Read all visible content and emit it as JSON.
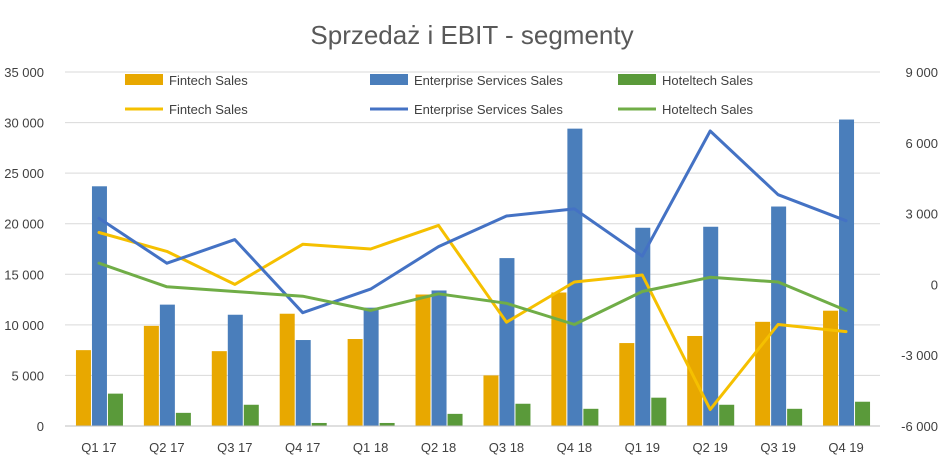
{
  "chart_data": {
    "type": "bar",
    "title": "Sprzedaż i EBIT - segmenty",
    "categories": [
      "Q1 17",
      "Q2 17",
      "Q3 17",
      "Q4 17",
      "Q1 18",
      "Q2 18",
      "Q3 18",
      "Q4 18",
      "Q1 19",
      "Q2 19",
      "Q3 19",
      "Q4 19"
    ],
    "left_axis": {
      "min": 0,
      "max": 35000,
      "step": 5000,
      "tick_labels": [
        "0",
        "5 000",
        "10 000",
        "15 000",
        "20 000",
        "25 000",
        "30 000",
        "35 000"
      ]
    },
    "right_axis": {
      "min": -6000,
      "max": 9000,
      "step": 3000,
      "tick_labels": [
        "-6 000",
        "-3 000",
        "0",
        "3 000",
        "6 000",
        "9 000"
      ]
    },
    "bar_series": [
      {
        "name": "Fintech Sales",
        "color": "#E8A800",
        "values": [
          7500,
          9900,
          7400,
          11100,
          8600,
          13000,
          5000,
          13200,
          8200,
          8900,
          10300,
          11400
        ]
      },
      {
        "name": "Enterprise Services Sales",
        "color": "#4A7EBB",
        "values": [
          23700,
          12000,
          11000,
          8500,
          11700,
          13400,
          16600,
          29400,
          19600,
          19700,
          21700,
          30300
        ]
      },
      {
        "name": "Hoteltech Sales",
        "color": "#5A9A3A",
        "values": [
          3200,
          1300,
          2100,
          300,
          300,
          1200,
          2200,
          1700,
          2800,
          2100,
          1700,
          2400
        ]
      }
    ],
    "line_series": [
      {
        "name": "Fintech Sales",
        "color": "#F5C000",
        "values": [
          2200,
          1400,
          0,
          1700,
          1500,
          2500,
          -1600,
          100,
          400,
          -5300,
          -1700,
          -2000
        ]
      },
      {
        "name": "Enterprise Services Sales",
        "color": "#4472C4",
        "values": [
          2800,
          900,
          1900,
          -1200,
          -200,
          1600,
          2900,
          3200,
          1200,
          6500,
          3800,
          2700
        ]
      },
      {
        "name": "Hoteltech Sales",
        "color": "#70AD47",
        "values": [
          900,
          -100,
          -300,
          -500,
          -1100,
          -400,
          -800,
          -1700,
          -300,
          300,
          100,
          -1100
        ]
      }
    ],
    "grid": true,
    "legend_position": "top"
  }
}
